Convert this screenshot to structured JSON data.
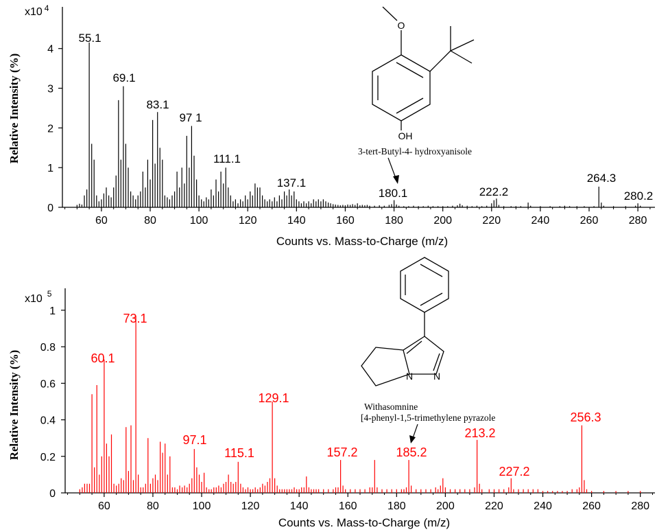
{
  "chart_data": [
    {
      "type": "bar",
      "exponent_label": "x10",
      "exponent": "4",
      "xlabel": "Counts vs. Mass-to-Charge (m/z)",
      "ylabel": "Relative Intensity  (%)",
      "xlim": [
        44,
        287
      ],
      "ylim": [
        0,
        5.05
      ],
      "x_ticks": [
        "60",
        "80",
        "100",
        "120",
        "140",
        "160",
        "180",
        "200",
        "220",
        "240",
        "260",
        "280"
      ],
      "y_ticks": [
        "0",
        "1",
        "2",
        "3",
        "4"
      ],
      "color": "#000000",
      "compound_label": "3-tert-Butyl-4- hydroxyanisole",
      "peak_labels": [
        "55.1",
        "69.1",
        "83.1",
        "97 1",
        "111.1",
        "137.1",
        "180.1",
        "222.2",
        "264.3",
        "280.2"
      ],
      "peaks": [
        [
          50,
          0.06
        ],
        [
          51,
          0.09
        ],
        [
          52,
          0.07
        ],
        [
          53,
          0.3
        ],
        [
          54,
          0.45
        ],
        [
          55,
          4.15
        ],
        [
          56,
          1.6
        ],
        [
          57,
          1.2
        ],
        [
          58,
          0.3
        ],
        [
          59,
          0.15
        ],
        [
          60,
          0.2
        ],
        [
          61,
          0.35
        ],
        [
          62,
          0.5
        ],
        [
          63,
          0.3
        ],
        [
          64,
          0.25
        ],
        [
          65,
          0.5
        ],
        [
          66,
          0.8
        ],
        [
          67,
          2.7
        ],
        [
          68,
          1.2
        ],
        [
          69,
          3.05
        ],
        [
          70,
          1.6
        ],
        [
          71,
          1.0
        ],
        [
          72,
          0.4
        ],
        [
          73,
          0.3
        ],
        [
          74,
          0.2
        ],
        [
          75,
          0.3
        ],
        [
          76,
          0.4
        ],
        [
          77,
          0.9
        ],
        [
          78,
          0.5
        ],
        [
          79,
          1.2
        ],
        [
          80,
          0.7
        ],
        [
          81,
          2.2
        ],
        [
          82,
          1.1
        ],
        [
          83,
          2.4
        ],
        [
          84,
          1.5
        ],
        [
          85,
          1.2
        ],
        [
          86,
          0.3
        ],
        [
          87,
          0.25
        ],
        [
          88,
          0.2
        ],
        [
          89,
          0.3
        ],
        [
          90,
          0.4
        ],
        [
          91,
          0.9
        ],
        [
          92,
          0.5
        ],
        [
          93,
          1.0
        ],
        [
          94,
          0.6
        ],
        [
          95,
          1.8
        ],
        [
          96,
          1.0
        ],
        [
          97,
          2.05
        ],
        [
          98,
          1.3
        ],
        [
          99,
          0.7
        ],
        [
          100,
          0.3
        ],
        [
          101,
          0.2
        ],
        [
          102,
          0.15
        ],
        [
          103,
          0.25
        ],
        [
          104,
          0.2
        ],
        [
          105,
          0.45
        ],
        [
          106,
          0.3
        ],
        [
          107,
          0.7
        ],
        [
          108,
          0.4
        ],
        [
          109,
          0.9
        ],
        [
          110,
          0.6
        ],
        [
          111,
          1.0
        ],
        [
          112,
          0.5
        ],
        [
          113,
          0.3
        ],
        [
          114,
          0.15
        ],
        [
          115,
          0.2
        ],
        [
          116,
          0.1
        ],
        [
          117,
          0.2
        ],
        [
          118,
          0.15
        ],
        [
          119,
          0.3
        ],
        [
          120,
          0.2
        ],
        [
          121,
          0.4
        ],
        [
          122,
          0.3
        ],
        [
          123,
          0.6
        ],
        [
          124,
          0.5
        ],
        [
          125,
          0.5
        ],
        [
          126,
          0.3
        ],
        [
          127,
          0.2
        ],
        [
          128,
          0.15
        ],
        [
          129,
          0.2
        ],
        [
          130,
          0.15
        ],
        [
          131,
          0.25
        ],
        [
          132,
          0.15
        ],
        [
          133,
          0.3
        ],
        [
          134,
          0.2
        ],
        [
          135,
          0.4
        ],
        [
          136,
          0.3
        ],
        [
          137,
          0.45
        ],
        [
          138,
          0.3
        ],
        [
          139,
          0.4
        ],
        [
          140,
          0.2
        ],
        [
          141,
          0.15
        ],
        [
          142,
          0.1
        ],
        [
          143,
          0.15
        ],
        [
          144,
          0.1
        ],
        [
          145,
          0.15
        ],
        [
          146,
          0.1
        ],
        [
          147,
          0.2
        ],
        [
          148,
          0.15
        ],
        [
          149,
          0.2
        ],
        [
          150,
          0.15
        ],
        [
          151,
          0.2
        ],
        [
          152,
          0.15
        ],
        [
          153,
          0.12
        ],
        [
          154,
          0.1
        ],
        [
          155,
          0.08
        ],
        [
          156,
          0.07
        ],
        [
          157,
          0.06
        ],
        [
          158,
          0.05
        ],
        [
          159,
          0.06
        ],
        [
          160,
          0.05
        ],
        [
          161,
          0.07
        ],
        [
          162,
          0.06
        ],
        [
          163,
          0.08
        ],
        [
          164,
          0.06
        ],
        [
          165,
          0.1
        ],
        [
          166,
          0.05
        ],
        [
          167,
          0.06
        ],
        [
          168,
          0.05
        ],
        [
          169,
          0.06
        ],
        [
          170,
          0.04
        ],
        [
          172,
          0.04
        ],
        [
          174,
          0.05
        ],
        [
          176,
          0.04
        ],
        [
          178,
          0.06
        ],
        [
          179,
          0.08
        ],
        [
          180,
          0.18
        ],
        [
          181,
          0.07
        ],
        [
          182,
          0.04
        ],
        [
          184,
          0.03
        ],
        [
          186,
          0.03
        ],
        [
          188,
          0.04
        ],
        [
          190,
          0.03
        ],
        [
          192,
          0.03
        ],
        [
          194,
          0.04
        ],
        [
          196,
          0.03
        ],
        [
          198,
          0.03
        ],
        [
          200,
          0.03
        ],
        [
          202,
          0.03
        ],
        [
          204,
          0.04
        ],
        [
          206,
          0.05
        ],
        [
          207,
          0.09
        ],
        [
          208,
          0.05
        ],
        [
          210,
          0.04
        ],
        [
          212,
          0.03
        ],
        [
          214,
          0.04
        ],
        [
          216,
          0.03
        ],
        [
          218,
          0.04
        ],
        [
          220,
          0.1
        ],
        [
          221,
          0.18
        ],
        [
          222,
          0.22
        ],
        [
          223,
          0.06
        ],
        [
          225,
          0.03
        ],
        [
          228,
          0.03
        ],
        [
          230,
          0.03
        ],
        [
          232,
          0.03
        ],
        [
          235,
          0.12
        ],
        [
          236,
          0.04
        ],
        [
          240,
          0.03
        ],
        [
          244,
          0.03
        ],
        [
          248,
          0.03
        ],
        [
          250,
          0.04
        ],
        [
          252,
          0.03
        ],
        [
          255,
          0.03
        ],
        [
          258,
          0.03
        ],
        [
          262,
          0.03
        ],
        [
          264,
          0.52
        ],
        [
          265,
          0.12
        ],
        [
          266,
          0.04
        ],
        [
          270,
          0.03
        ],
        [
          275,
          0.03
        ],
        [
          279,
          0.04
        ],
        [
          280,
          0.1
        ],
        [
          281,
          0.04
        ]
      ]
    },
    {
      "type": "bar",
      "exponent_label": "x10",
      "exponent": "5",
      "xlabel": "Counts vs. Mass-to-Charge (m/z)",
      "ylabel": "Relative Intensity  (%)",
      "xlim": [
        44,
        286
      ],
      "ylim": [
        0,
        1.12
      ],
      "x_ticks": [
        "60",
        "80",
        "100",
        "120",
        "140",
        "160",
        "180",
        "200",
        "220",
        "240",
        "260",
        "280"
      ],
      "y_ticks": [
        "0",
        "0.2",
        "0.4",
        "0.6",
        "0.8",
        "1"
      ],
      "color": "#ff0000",
      "compound_label_lines": [
        "Withasomnine",
        "[4-phenyl-1,5-trimethylene pyrazole"
      ],
      "peak_labels": [
        "60.1",
        "73.1",
        "97.1",
        "115.1",
        "129.1",
        "157.2",
        "185.2",
        "213.2",
        "227.2",
        "256.3"
      ],
      "peaks": [
        [
          50,
          0.02
        ],
        [
          51,
          0.03
        ],
        [
          52,
          0.05
        ],
        [
          53,
          0.05
        ],
        [
          54,
          0.05
        ],
        [
          55,
          0.54
        ],
        [
          56,
          0.14
        ],
        [
          57,
          0.59
        ],
        [
          58,
          0.1
        ],
        [
          59,
          0.2
        ],
        [
          60,
          0.73
        ],
        [
          61,
          0.27
        ],
        [
          62,
          0.2
        ],
        [
          63,
          0.32
        ],
        [
          64,
          0.05
        ],
        [
          65,
          0.04
        ],
        [
          66,
          0.05
        ],
        [
          67,
          0.08
        ],
        [
          68,
          0.07
        ],
        [
          69,
          0.36
        ],
        [
          70,
          0.12
        ],
        [
          71,
          0.37
        ],
        [
          72,
          0.07
        ],
        [
          73,
          0.97
        ],
        [
          74,
          0.1
        ],
        [
          75,
          0.03
        ],
        [
          76,
          0.03
        ],
        [
          77,
          0.05
        ],
        [
          78,
          0.3
        ],
        [
          79,
          0.05
        ],
        [
          80,
          0.08
        ],
        [
          81,
          0.1
        ],
        [
          82,
          0.07
        ],
        [
          83,
          0.28
        ],
        [
          84,
          0.22
        ],
        [
          85,
          0.27
        ],
        [
          86,
          0.1
        ],
        [
          87,
          0.2
        ],
        [
          88,
          0.03
        ],
        [
          89,
          0.03
        ],
        [
          90,
          0.02
        ],
        [
          91,
          0.04
        ],
        [
          92,
          0.03
        ],
        [
          93,
          0.04
        ],
        [
          94,
          0.03
        ],
        [
          95,
          0.05
        ],
        [
          96,
          0.08
        ],
        [
          97,
          0.24
        ],
        [
          98,
          0.14
        ],
        [
          99,
          0.1
        ],
        [
          100,
          0.06
        ],
        [
          101,
          0.11
        ],
        [
          102,
          0.03
        ],
        [
          103,
          0.02
        ],
        [
          104,
          0.02
        ],
        [
          105,
          0.03
        ],
        [
          106,
          0.03
        ],
        [
          107,
          0.04
        ],
        [
          108,
          0.03
        ],
        [
          109,
          0.05
        ],
        [
          110,
          0.06
        ],
        [
          111,
          0.1
        ],
        [
          112,
          0.06
        ],
        [
          113,
          0.05
        ],
        [
          114,
          0.06
        ],
        [
          115,
          0.17
        ],
        [
          116,
          0.05
        ],
        [
          117,
          0.03
        ],
        [
          118,
          0.02
        ],
        [
          119,
          0.03
        ],
        [
          120,
          0.02
        ],
        [
          121,
          0.02
        ],
        [
          122,
          0.03
        ],
        [
          123,
          0.02
        ],
        [
          124,
          0.03
        ],
        [
          125,
          0.05
        ],
        [
          126,
          0.04
        ],
        [
          127,
          0.06
        ],
        [
          128,
          0.08
        ],
        [
          129,
          0.5
        ],
        [
          130,
          0.08
        ],
        [
          131,
          0.04
        ],
        [
          132,
          0.02
        ],
        [
          133,
          0.02
        ],
        [
          134,
          0.02
        ],
        [
          135,
          0.02
        ],
        [
          136,
          0.02
        ],
        [
          137,
          0.02
        ],
        [
          138,
          0.03
        ],
        [
          139,
          0.02
        ],
        [
          140,
          0.02
        ],
        [
          141,
          0.03
        ],
        [
          142,
          0.03
        ],
        [
          143,
          0.09
        ],
        [
          144,
          0.03
        ],
        [
          145,
          0.02
        ],
        [
          146,
          0.02
        ],
        [
          147,
          0.02
        ],
        [
          148,
          0.02
        ],
        [
          150,
          0.02
        ],
        [
          152,
          0.02
        ],
        [
          154,
          0.02
        ],
        [
          155,
          0.03
        ],
        [
          156,
          0.03
        ],
        [
          157,
          0.18
        ],
        [
          158,
          0.04
        ],
        [
          159,
          0.02
        ],
        [
          161,
          0.02
        ],
        [
          163,
          0.02
        ],
        [
          165,
          0.02
        ],
        [
          167,
          0.02
        ],
        [
          169,
          0.03
        ],
        [
          170,
          0.03
        ],
        [
          171,
          0.18
        ],
        [
          172,
          0.03
        ],
        [
          174,
          0.02
        ],
        [
          176,
          0.02
        ],
        [
          178,
          0.02
        ],
        [
          180,
          0.02
        ],
        [
          182,
          0.02
        ],
        [
          183,
          0.02
        ],
        [
          184,
          0.03
        ],
        [
          185,
          0.18
        ],
        [
          186,
          0.04
        ],
        [
          188,
          0.02
        ],
        [
          190,
          0.02
        ],
        [
          192,
          0.02
        ],
        [
          194,
          0.02
        ],
        [
          196,
          0.03
        ],
        [
          197,
          0.02
        ],
        [
          198,
          0.04
        ],
        [
          199,
          0.08
        ],
        [
          200,
          0.03
        ],
        [
          202,
          0.02
        ],
        [
          204,
          0.02
        ],
        [
          206,
          0.02
        ],
        [
          208,
          0.02
        ],
        [
          210,
          0.02
        ],
        [
          212,
          0.03
        ],
        [
          213,
          0.29
        ],
        [
          214,
          0.05
        ],
        [
          215,
          0.02
        ],
        [
          218,
          0.02
        ],
        [
          220,
          0.02
        ],
        [
          222,
          0.02
        ],
        [
          224,
          0.02
        ],
        [
          226,
          0.03
        ],
        [
          227,
          0.08
        ],
        [
          228,
          0.02
        ],
        [
          230,
          0.02
        ],
        [
          232,
          0.02
        ],
        [
          234,
          0.02
        ],
        [
          236,
          0.02
        ],
        [
          238,
          0.02
        ],
        [
          240,
          0.01
        ],
        [
          242,
          0.01
        ],
        [
          244,
          0.01
        ],
        [
          246,
          0.01
        ],
        [
          248,
          0.01
        ],
        [
          250,
          0.01
        ],
        [
          252,
          0.02
        ],
        [
          254,
          0.02
        ],
        [
          255,
          0.03
        ],
        [
          256,
          0.37
        ],
        [
          257,
          0.07
        ],
        [
          258,
          0.02
        ],
        [
          260,
          0.01
        ],
        [
          265,
          0.01
        ],
        [
          270,
          0.01
        ],
        [
          275,
          0.01
        ],
        [
          280,
          0.01
        ]
      ]
    }
  ]
}
